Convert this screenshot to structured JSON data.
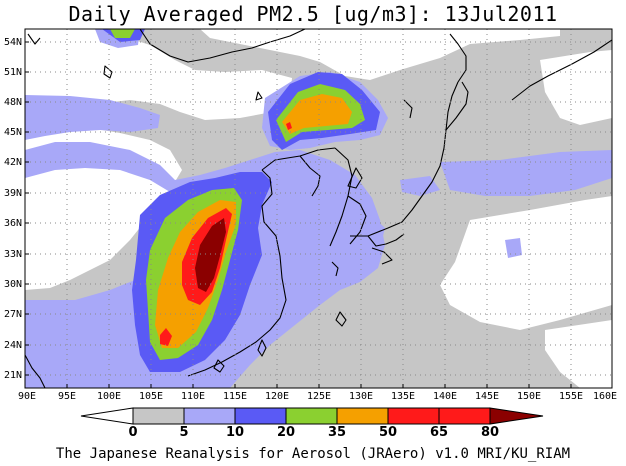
{
  "title": "Daily Averaged PM2.5 [ug/m3]: 13Jul2011",
  "footer": "The Japanese Reanalysis for Aerosol (JRAero) v1.0 MRI/KU_RIAM",
  "map": {
    "lon_range": [
      90,
      160
    ],
    "lat_range": [
      20,
      55
    ],
    "lat_ticks": [
      "54N",
      "51N",
      "48N",
      "45N",
      "42N",
      "39N",
      "36N",
      "33N",
      "30N",
      "27N",
      "24N",
      "21N"
    ],
    "lon_ticks": [
      "90E",
      "95E",
      "100E",
      "105E",
      "110E",
      "115E",
      "120E",
      "125E",
      "130E",
      "135E",
      "140E",
      "145E",
      "150E",
      "155E",
      "160E"
    ],
    "gridlines": true
  },
  "colorbar": {
    "levels": [
      "0",
      "5",
      "10",
      "20",
      "35",
      "50",
      "65",
      "80"
    ],
    "colors": [
      "#ffffff",
      "#c6c6c6",
      "#a8a8f8",
      "#5a5af5",
      "#8bd030",
      "#f5a000",
      "#ff1a1a",
      "#8b0000"
    ]
  }
}
